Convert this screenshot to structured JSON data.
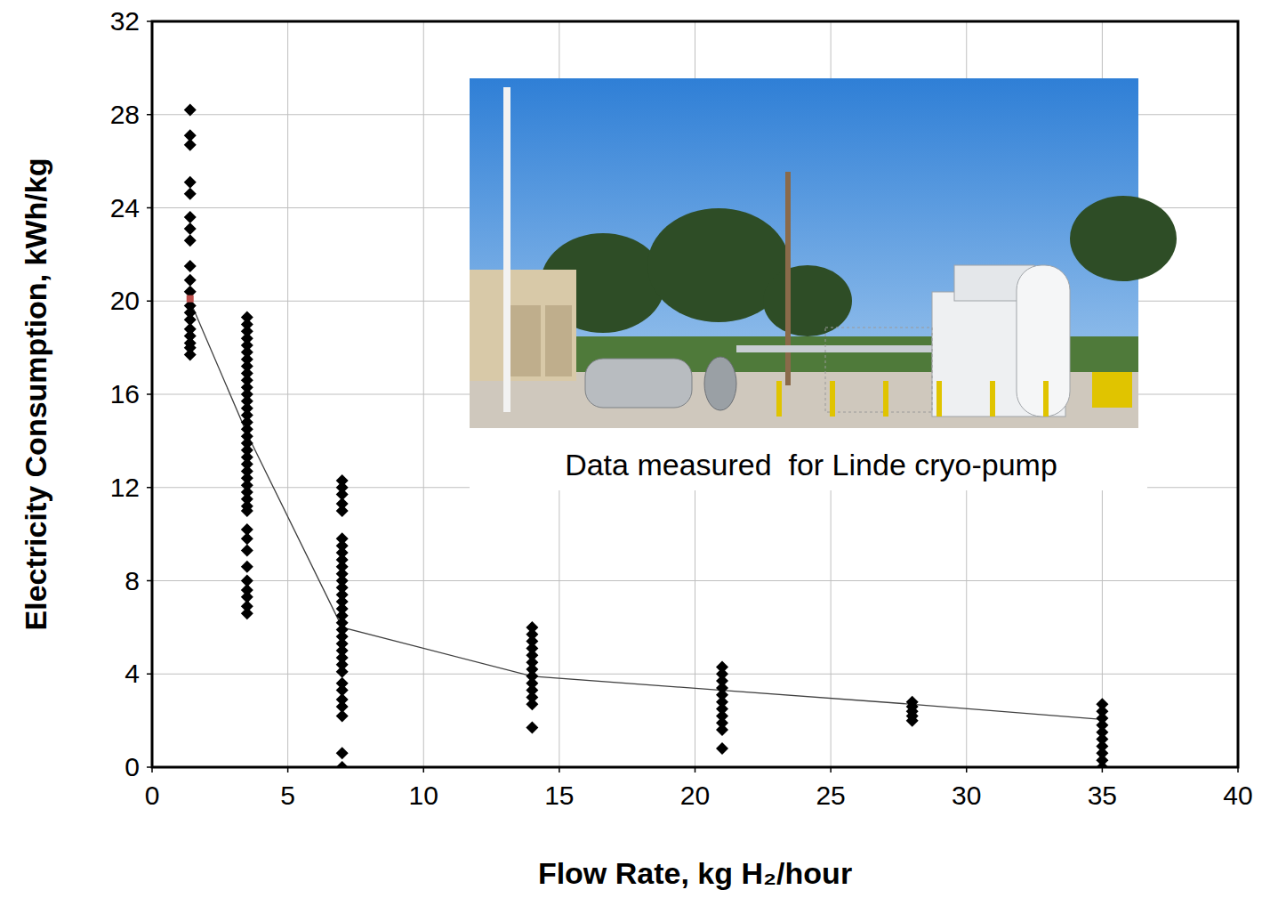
{
  "chart_data": {
    "type": "scatter",
    "xlabel": "Flow Rate, kg H₂/hour",
    "ylabel": "Electricity Consumption, kWh/kg",
    "annotations": [
      "Data measured  for Linde cryo-pump"
    ],
    "xlim": [
      0,
      40
    ],
    "xticks": [
      0,
      5,
      10,
      15,
      20,
      25,
      30,
      35,
      40
    ],
    "ylim": [
      0,
      32
    ],
    "yticks": [
      0,
      4,
      8,
      12,
      16,
      20,
      24,
      28,
      32
    ],
    "grid": true,
    "series": [
      {
        "type": "scatter",
        "marker": "diamond",
        "color": "#000000",
        "x": [
          1.4,
          1.4,
          1.4,
          1.4,
          1.4,
          1.4,
          1.4,
          1.4,
          1.4,
          1.4,
          1.4,
          1.4,
          1.4,
          1.4,
          1.4,
          1.4,
          1.4,
          1.4,
          1.4,
          3.5,
          3.5,
          3.5,
          3.5,
          3.5,
          3.5,
          3.5,
          3.5,
          3.5,
          3.5,
          3.5,
          3.5,
          3.5,
          3.5,
          3.5,
          3.5,
          3.5,
          3.5,
          3.5,
          3.5,
          3.5,
          3.5,
          3.5,
          3.5,
          3.5,
          3.5,
          3.5,
          3.5,
          3.5,
          3.5,
          3.5,
          3.5,
          3.5,
          3.5,
          3.5,
          3.5,
          3.5,
          3.5,
          7,
          7,
          7,
          7,
          7,
          7,
          7,
          7,
          7,
          7,
          7,
          7,
          7,
          7,
          7,
          7,
          7,
          7,
          7,
          7,
          7,
          7,
          7,
          7,
          7,
          7,
          7,
          7,
          7,
          7,
          7,
          7,
          14,
          14,
          14,
          14,
          14,
          14,
          14,
          14,
          14,
          14,
          14,
          14,
          14,
          21,
          21,
          21,
          21,
          21,
          21,
          21,
          21,
          21,
          21,
          21,
          28,
          28,
          28,
          28,
          28,
          35,
          35,
          35,
          35,
          35,
          35,
          35,
          35,
          35,
          35
        ],
        "values": [
          28.2,
          27.1,
          26.7,
          25.1,
          24.6,
          23.6,
          23.1,
          22.6,
          21.5,
          20.9,
          20.4,
          19.8,
          19.5,
          19.2,
          18.8,
          18.5,
          18.2,
          18.0,
          17.7,
          19.3,
          19.0,
          18.7,
          18.4,
          18.1,
          17.8,
          17.5,
          17.2,
          16.9,
          16.6,
          16.3,
          16.0,
          15.7,
          15.4,
          15.1,
          14.8,
          14.5,
          14.2,
          13.9,
          13.6,
          13.3,
          13.0,
          12.7,
          12.4,
          12.1,
          11.8,
          11.5,
          11.2,
          11.0,
          10.2,
          9.8,
          9.3,
          8.6,
          8.0,
          7.6,
          7.3,
          6.9,
          6.6,
          12.3,
          12.0,
          11.7,
          11.3,
          11.0,
          9.8,
          9.5,
          9.2,
          8.9,
          8.6,
          8.3,
          8.0,
          7.7,
          7.4,
          7.1,
          6.8,
          6.5,
          6.2,
          5.9,
          5.6,
          5.3,
          5.0,
          4.7,
          4.4,
          4.1,
          3.6,
          3.3,
          2.9,
          2.6,
          2.2,
          0.6,
          0.0,
          6.0,
          5.7,
          5.4,
          5.1,
          4.8,
          4.5,
          4.2,
          3.9,
          3.6,
          3.3,
          3.0,
          2.7,
          1.7,
          4.3,
          4.0,
          3.7,
          3.4,
          3.1,
          2.8,
          2.5,
          2.2,
          1.9,
          1.6,
          0.8,
          2.8,
          2.6,
          2.4,
          2.2,
          2.0,
          2.7,
          2.4,
          2.1,
          1.8,
          1.5,
          1.2,
          0.9,
          0.6,
          0.3,
          0.0
        ]
      },
      {
        "type": "line",
        "color": "#404040",
        "x": [
          1.4,
          3.5,
          7,
          14,
          21,
          28,
          35
        ],
        "values": [
          20.0,
          14.3,
          6.0,
          3.9,
          3.3,
          2.7,
          2.05
        ]
      },
      {
        "type": "scatter",
        "marker": "square",
        "color": "#c0504d",
        "x": [
          1.4
        ],
        "values": [
          20.1
        ]
      }
    ]
  }
}
